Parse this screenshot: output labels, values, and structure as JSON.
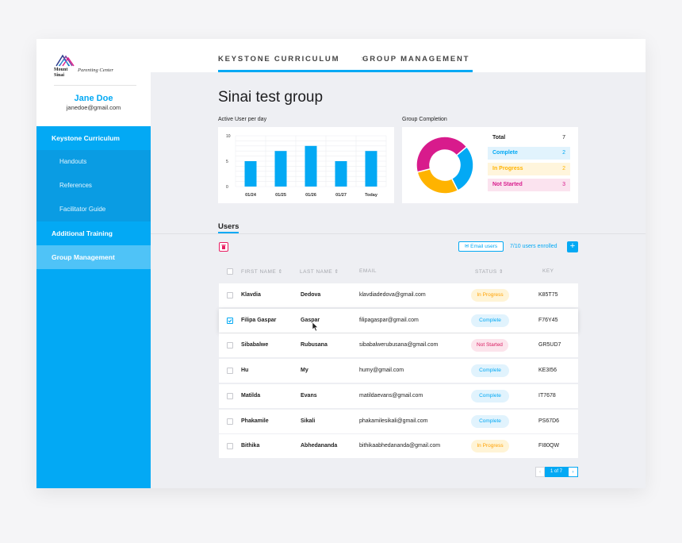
{
  "brand": {
    "logo_text": "Mount\nSinai",
    "tagline": "Parenting Center"
  },
  "user": {
    "name": "Jane Doe",
    "email": "janedoe@gmail.com"
  },
  "sidebar": {
    "items": [
      {
        "label": "Keystone Curriculum",
        "type": "main"
      },
      {
        "label": "Handouts",
        "type": "sub"
      },
      {
        "label": "References",
        "type": "sub"
      },
      {
        "label": "Facilitator Guide",
        "type": "sub"
      },
      {
        "label": "Additional Training",
        "type": "main"
      },
      {
        "label": "Group Management",
        "type": "main",
        "active": true
      }
    ]
  },
  "breadcrumb": {
    "first": "KEYSTONE CURRICULUM",
    "separator": ">",
    "second": "GROUP MANAGEMENT"
  },
  "page": {
    "title": "Sinai test group"
  },
  "bar_chart": {
    "label": "Active User per day",
    "ticks": [
      "10",
      "5",
      "0"
    ]
  },
  "donut": {
    "label": "Group Completion",
    "total_label": "Total",
    "total_value": "7",
    "legend": [
      {
        "label": "Complete",
        "value": "2",
        "color": "#03a9f4",
        "bg": "#e1f3fd"
      },
      {
        "label": "In Progress",
        "value": "2",
        "color": "#ffb300",
        "bg": "#fff5dc"
      },
      {
        "label": "Not Started",
        "value": "3",
        "color": "#d81b8c",
        "bg": "#fbe3ef"
      }
    ]
  },
  "chart_data": [
    {
      "type": "bar",
      "title": "Active User per day",
      "categories": [
        "01/24",
        "01/25",
        "01/26",
        "01/27",
        "Today"
      ],
      "values": [
        5,
        7,
        8,
        5,
        7
      ],
      "ylim": [
        0,
        10
      ],
      "yticks": [
        0,
        5,
        10
      ],
      "grid": true,
      "color": "#03a9f4"
    },
    {
      "type": "pie",
      "title": "Group Completion",
      "categories": [
        "Complete",
        "In Progress",
        "Not Started"
      ],
      "values": [
        2,
        2,
        3
      ],
      "colors": [
        "#03a9f4",
        "#ffb300",
        "#d81b8c"
      ]
    }
  ],
  "users": {
    "title": "Users",
    "email_button": "Email users",
    "enrolled": "7/10 users enrolled",
    "add_button": "+",
    "columns": [
      "FIRST NAME",
      "LAST NAME",
      "EMAIL",
      "STATUS",
      "KEY"
    ],
    "rows": [
      {
        "first": "Klavdia",
        "last": "Dedova",
        "email": "klavdiadedova@gmail.com",
        "status": "In Progress",
        "key": "K85T75",
        "checked": false
      },
      {
        "first": "Filipa Gaspar",
        "last": "Gaspar",
        "email": "filipagaspar@gmail.com",
        "status": "Complete",
        "key": "F76Y45",
        "checked": true
      },
      {
        "first": "Sibabalwe",
        "last": "Rubusana",
        "email": "sibabalwerubusana@gmail.com",
        "status": "Not Started",
        "key": "GR5UD7",
        "checked": false
      },
      {
        "first": "Hu",
        "last": "My",
        "email": "humy@gmail.com",
        "status": "Complete",
        "key": "KE3I56",
        "checked": false
      },
      {
        "first": "Matilda",
        "last": "Evans",
        "email": "matildaevans@gmail.com",
        "status": "Complete",
        "key": "IT7678",
        "checked": false
      },
      {
        "first": "Phakamile",
        "last": "Sikali",
        "email": "phakamilesikali@gmail.com",
        "status": "Complete",
        "key": "PS67D6",
        "checked": false
      },
      {
        "first": "Bithika",
        "last": "Abhedananda",
        "email": "bithikaabhedananda@gmail.com",
        "status": "In Progress",
        "key": "FI80QW",
        "checked": false
      }
    ],
    "status_styles": {
      "In Progress": {
        "color": "#ffa000",
        "bg": "#fff4d6"
      },
      "Complete": {
        "color": "#03a9f4",
        "bg": "#e1f3fd"
      },
      "Not Started": {
        "color": "#d81b60",
        "bg": "#fce4ec"
      }
    }
  },
  "pagination": {
    "prev": "‹",
    "current": "1 of 7",
    "next": "›"
  }
}
